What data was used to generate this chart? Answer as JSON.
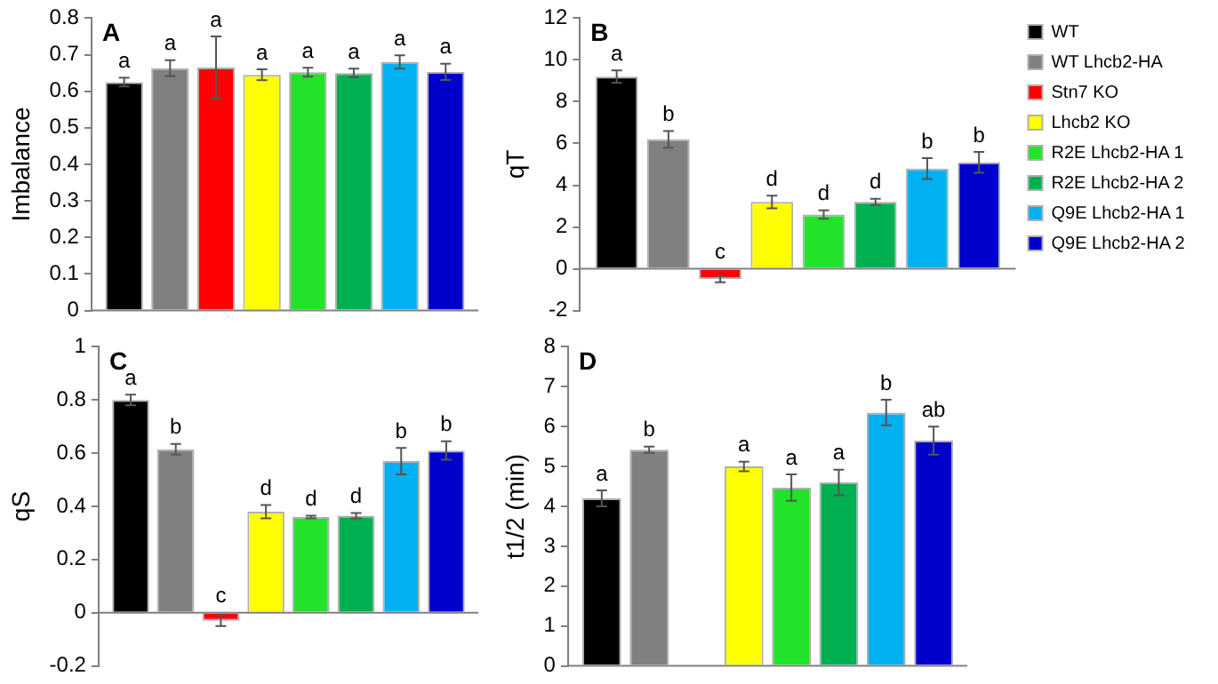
{
  "chart_data": [
    {
      "type": "bar",
      "ylabel": "Imbalance",
      "categories": [
        null
      ],
      "ylim": [
        0,
        0.8
      ],
      "yticks": [
        0,
        0.1,
        0.2,
        0.3,
        0.4,
        0.5,
        0.6,
        0.7,
        0.8
      ],
      "tick_labels": "y",
      "legend": false,
      "annotations": [
        "A"
      ],
      "series": [
        {
          "color": "#000000",
          "values": [
            0.625
          ],
          "errors": [
            0.012
          ],
          "value_labels": [
            "a"
          ]
        },
        {
          "color": "#808080",
          "values": [
            0.663
          ],
          "errors": [
            0.022
          ],
          "value_labels": [
            "a"
          ]
        },
        {
          "color": "#ff0000",
          "values": [
            0.665
          ],
          "errors": [
            0.085
          ],
          "value_labels": [
            "a"
          ]
        },
        {
          "color": "#ffff00",
          "values": [
            0.645
          ],
          "errors": [
            0.015
          ],
          "value_labels": [
            "a"
          ]
        },
        {
          "color": "#22e22a",
          "values": [
            0.652
          ],
          "errors": [
            0.012
          ],
          "value_labels": [
            "a"
          ]
        },
        {
          "color": "#00b050",
          "values": [
            0.65
          ],
          "errors": [
            0.012
          ],
          "value_labels": [
            "a"
          ]
        },
        {
          "color": "#00b0f0",
          "values": [
            0.68
          ],
          "errors": [
            0.018
          ],
          "value_labels": [
            "a"
          ]
        },
        {
          "color": "#0000cc",
          "values": [
            0.653
          ],
          "errors": [
            0.022
          ],
          "value_labels": [
            "a"
          ]
        }
      ]
    },
    {
      "type": "bar",
      "ylabel": "qT",
      "categories": [
        null
      ],
      "ylim": [
        -2,
        12
      ],
      "yticks": [
        -2,
        0,
        2,
        4,
        6,
        8,
        10,
        12
      ],
      "tick_labels": "y",
      "legend": "right",
      "annotations": [
        "B"
      ],
      "series": [
        {
          "name": "WT",
          "color": "#000000",
          "values": [
            9.2
          ],
          "errors": [
            0.3
          ],
          "value_labels": [
            "a"
          ]
        },
        {
          "name": "WT Lhcb2-HA",
          "color": "#808080",
          "values": [
            6.2
          ],
          "errors": [
            0.4
          ],
          "value_labels": [
            "b"
          ]
        },
        {
          "name": "Stn7 KO",
          "color": "#ff0000",
          "values": [
            -0.5
          ],
          "errors": [
            0.15
          ],
          "value_labels": [
            "c"
          ]
        },
        {
          "name": "Lhcb2 KO",
          "color": "#ffff00",
          "values": [
            3.2
          ],
          "errors": [
            0.3
          ],
          "value_labels": [
            "d"
          ]
        },
        {
          "name": "R2E Lhcb2-HA 1",
          "color": "#22e22a",
          "values": [
            2.6
          ],
          "errors": [
            0.2
          ],
          "value_labels": [
            "d"
          ]
        },
        {
          "name": "R2E Lhcb2-HA 2",
          "color": "#00b050",
          "values": [
            3.2
          ],
          "errors": [
            0.15
          ],
          "value_labels": [
            "d"
          ]
        },
        {
          "name": "Q9E Lhcb2-HA 1",
          "color": "#00b0f0",
          "values": [
            4.8
          ],
          "errors": [
            0.5
          ],
          "value_labels": [
            "b"
          ]
        },
        {
          "name": "Q9E Lhcb2-HA 2",
          "color": "#0000cc",
          "values": [
            5.1
          ],
          "errors": [
            0.5
          ],
          "value_labels": [
            "b"
          ]
        }
      ]
    },
    {
      "type": "bar",
      "ylabel": "qS",
      "categories": [
        null
      ],
      "ylim": [
        -0.2,
        1
      ],
      "yticks": [
        -0.2,
        0,
        0.2,
        0.4,
        0.6,
        0.8,
        1
      ],
      "tick_labels": "y",
      "legend": false,
      "annotations": [
        "C"
      ],
      "series": [
        {
          "color": "#000000",
          "values": [
            0.8
          ],
          "errors": [
            0.02
          ],
          "value_labels": [
            "a"
          ]
        },
        {
          "color": "#808080",
          "values": [
            0.615
          ],
          "errors": [
            0.02
          ],
          "value_labels": [
            "b"
          ]
        },
        {
          "color": "#ff0000",
          "values": [
            -0.03
          ],
          "errors": [
            0.02
          ],
          "value_labels": [
            "c"
          ]
        },
        {
          "color": "#ffff00",
          "values": [
            0.38
          ],
          "errors": [
            0.025
          ],
          "value_labels": [
            "d"
          ]
        },
        {
          "color": "#22e22a",
          "values": [
            0.36
          ],
          "errors": [
            0.005
          ],
          "value_labels": [
            "d"
          ]
        },
        {
          "color": "#00b050",
          "values": [
            0.365
          ],
          "errors": [
            0.01
          ],
          "value_labels": [
            "d"
          ]
        },
        {
          "color": "#00b0f0",
          "values": [
            0.57
          ],
          "errors": [
            0.05
          ],
          "value_labels": [
            "b"
          ]
        },
        {
          "color": "#0000cc",
          "values": [
            0.61
          ],
          "errors": [
            0.035
          ],
          "value_labels": [
            "b"
          ]
        }
      ]
    },
    {
      "type": "bar",
      "ylabel": "t1/2 (min)",
      "categories": [
        null
      ],
      "ylim": [
        0,
        8
      ],
      "yticks": [
        0,
        1,
        2,
        3,
        4,
        5,
        6,
        7,
        8
      ],
      "tick_labels": "y",
      "legend": false,
      "annotations": [
        "D"
      ],
      "series": [
        {
          "color": "#000000",
          "values": [
            4.2
          ],
          "errors": [
            0.2
          ],
          "value_labels": [
            "a"
          ]
        },
        {
          "color": "#808080",
          "values": [
            5.42
          ],
          "errors": [
            0.08
          ],
          "value_labels": [
            "b"
          ]
        },
        {
          "color": "#ff0000",
          "values": [
            null
          ],
          "errors": [
            null
          ],
          "value_labels": [
            null
          ]
        },
        {
          "color": "#ffff00",
          "values": [
            5.0
          ],
          "errors": [
            0.12
          ],
          "value_labels": [
            "a"
          ]
        },
        {
          "color": "#22e22a",
          "values": [
            4.47
          ],
          "errors": [
            0.33
          ],
          "value_labels": [
            "a"
          ]
        },
        {
          "color": "#00b050",
          "values": [
            4.6
          ],
          "errors": [
            0.32
          ],
          "value_labels": [
            "a"
          ]
        },
        {
          "color": "#00b0f0",
          "values": [
            6.35
          ],
          "errors": [
            0.32
          ],
          "value_labels": [
            "b"
          ]
        },
        {
          "color": "#0000cc",
          "values": [
            5.65
          ],
          "errors": [
            0.35
          ],
          "value_labels": [
            "ab"
          ]
        }
      ]
    }
  ]
}
